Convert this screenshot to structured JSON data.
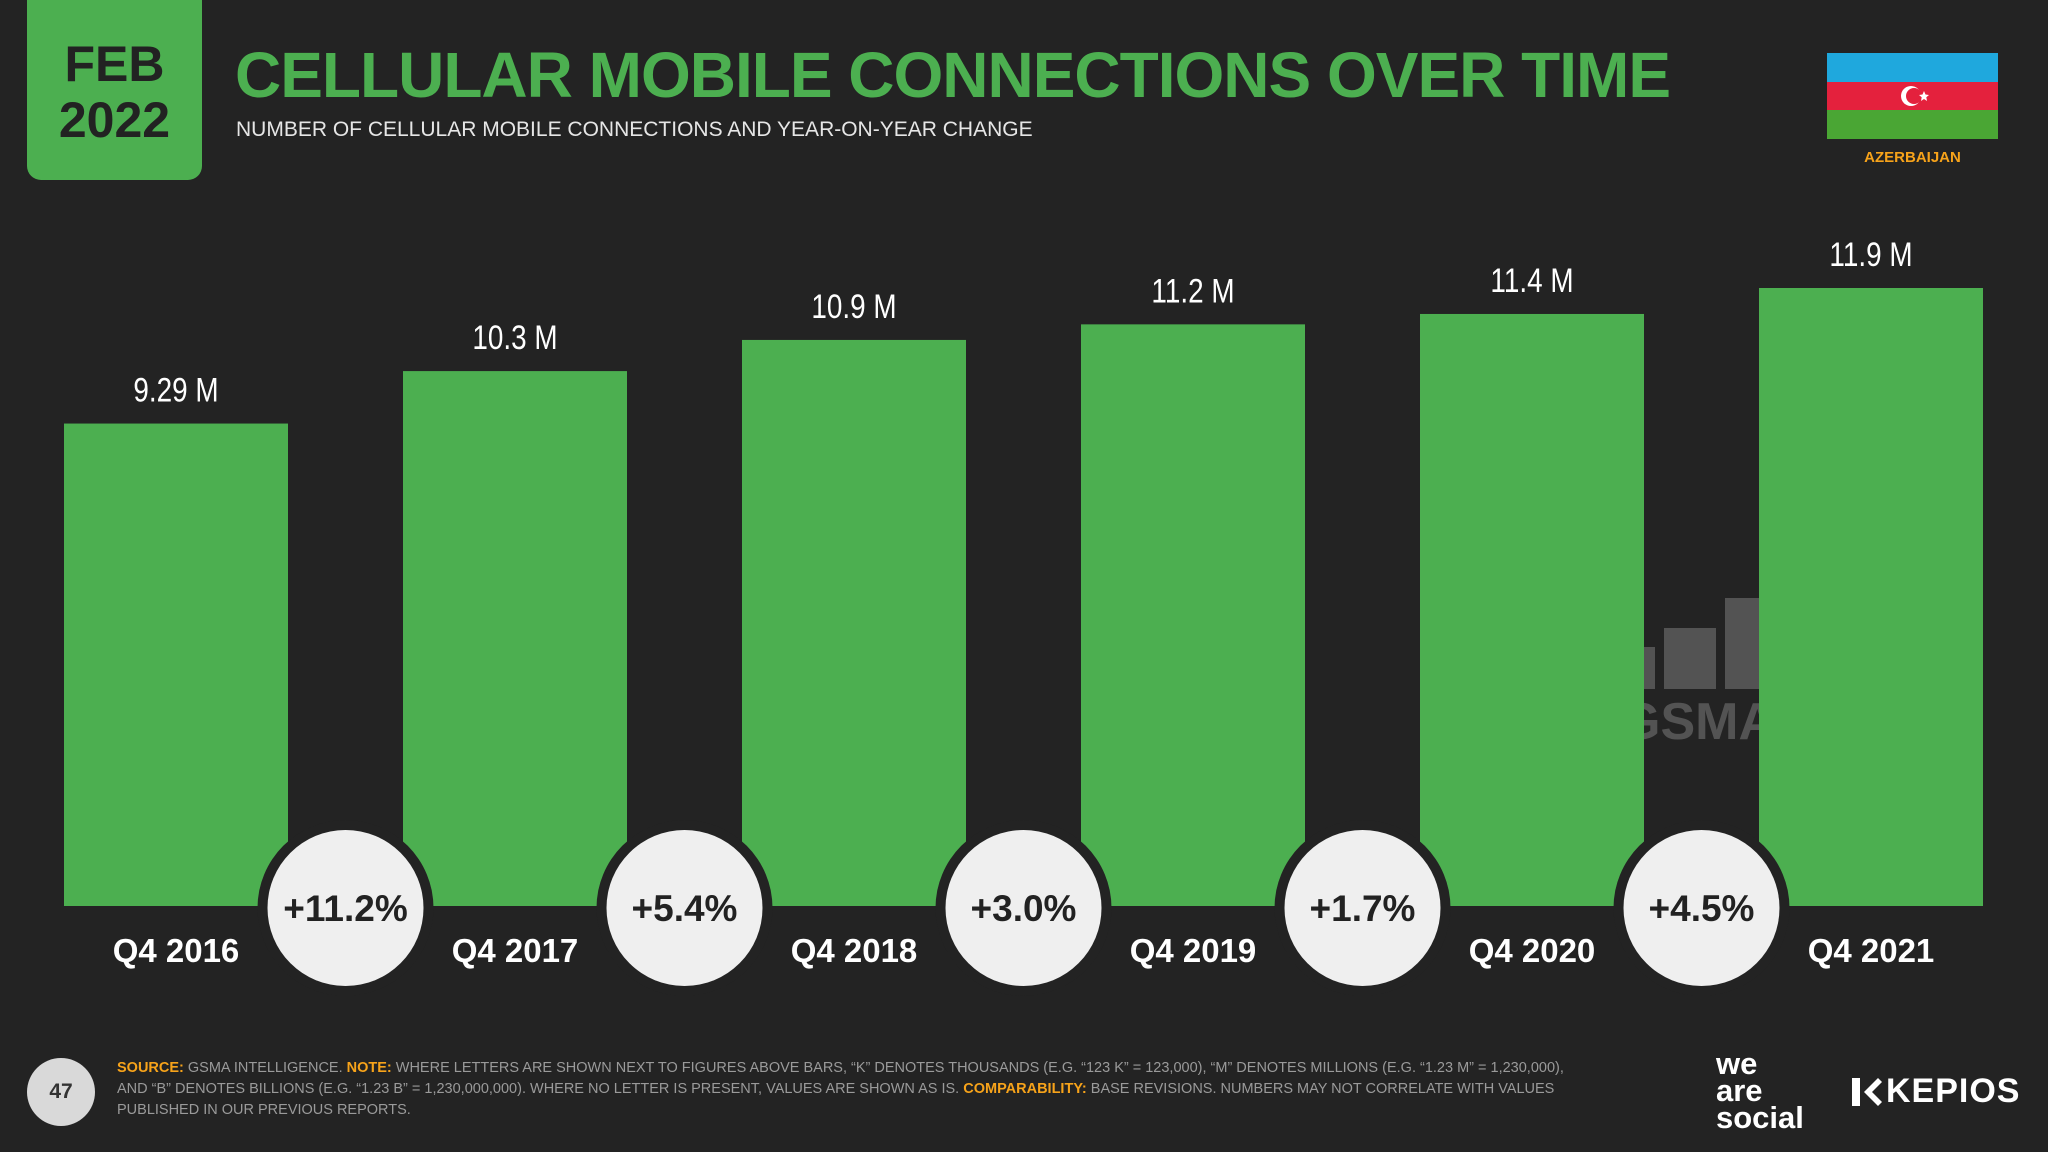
{
  "badge": {
    "month": "FEB",
    "year": "2022"
  },
  "header": {
    "title": "CELLULAR MOBILE CONNECTIONS OVER TIME",
    "subtitle": "NUMBER OF CELLULAR MOBILE CONNECTIONS AND YEAR-ON-YEAR CHANGE"
  },
  "country": {
    "name": "AZERBAIJAN",
    "flag_colors": [
      "#1fa8dd",
      "#e4213d",
      "#4aa634"
    ]
  },
  "colors": {
    "bar": "#4caf50",
    "background": "#232323",
    "accent": "#f7a31a",
    "bubble": "#efefef"
  },
  "chart_data": {
    "type": "bar",
    "title": "CELLULAR MOBILE CONNECTIONS OVER TIME",
    "categories": [
      "Q4 2016",
      "Q4 2017",
      "Q4 2018",
      "Q4 2019",
      "Q4 2020",
      "Q4 2021"
    ],
    "values": [
      9.29,
      10.3,
      10.9,
      11.2,
      11.4,
      11.9
    ],
    "value_labels": [
      "9.29 M",
      "10.3 M",
      "10.9 M",
      "11.2 M",
      "11.4 M",
      "11.9 M"
    ],
    "unit": "M",
    "yoy_change": [
      "+11.2%",
      "+5.4%",
      "+3.0%",
      "+1.7%",
      "+4.5%"
    ],
    "ylim": [
      0,
      11.9
    ]
  },
  "watermark": {
    "text": "GSMA"
  },
  "footer": {
    "page_number": "47",
    "source_label": "SOURCE:",
    "source_text": " GSMA INTELLIGENCE. ",
    "note_label": "NOTE:",
    "note_text": " WHERE LETTERS ARE SHOWN NEXT TO FIGURES ABOVE BARS, “K” DENOTES THOUSANDS (E.G. “123 K” = 123,000), “M” DENOTES MILLIONS (E.G. “1.23 M” = 1,230,000), AND “B” DENOTES BILLIONS (E.G. “1.23 B” = 1,230,000,000). WHERE NO LETTER IS PRESENT, VALUES ARE SHOWN AS IS. ",
    "comparability_label": "COMPARABILITY:",
    "comparability_text": " BASE REVISIONS. NUMBERS MAY NOT CORRELATE WITH VALUES PUBLISHED IN OUR PREVIOUS REPORTS."
  },
  "brands": {
    "was_line1": "we",
    "was_line2": "are",
    "was_line3": "social",
    "kepios": "KEPIOS"
  }
}
